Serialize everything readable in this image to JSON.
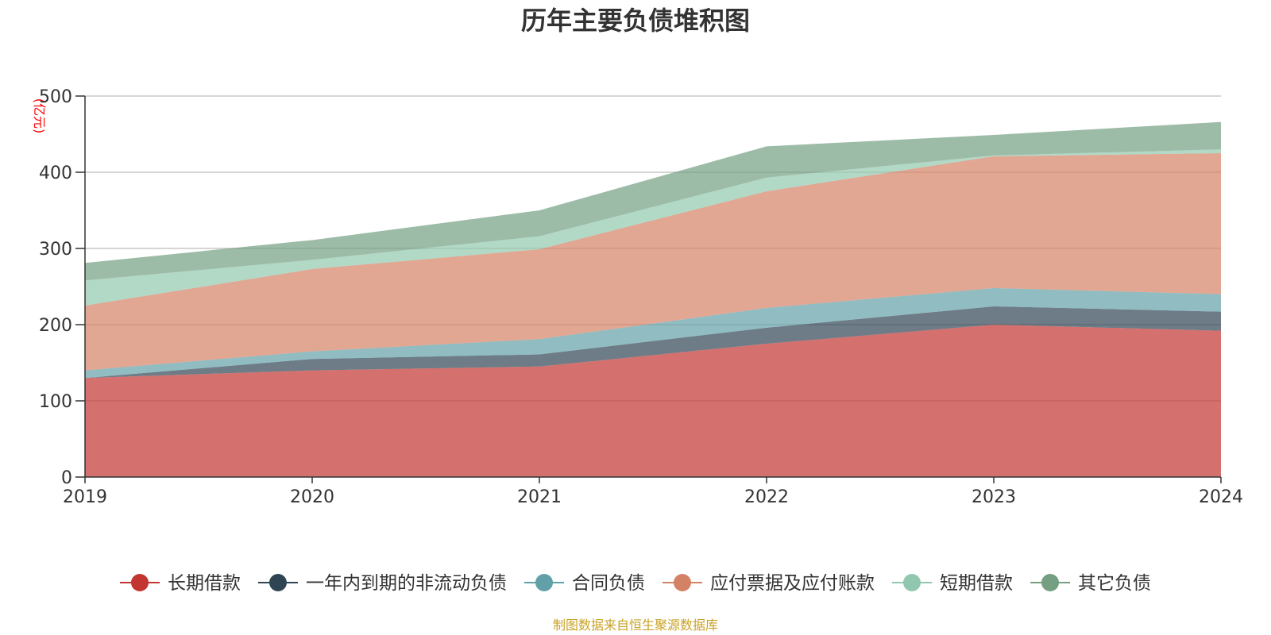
{
  "chart_data": {
    "type": "area",
    "stacked": true,
    "title": "历年主要负债堆积图",
    "unit_label": "(亿元)",
    "source_note": "制图数据来自恒生聚源数据库",
    "categories": [
      "2019",
      "2020",
      "2021",
      "2022",
      "2023",
      "2024"
    ],
    "ylim": [
      0,
      500
    ],
    "yticks": [
      0,
      100,
      200,
      300,
      400,
      500
    ],
    "grid": true,
    "legend_position": "bottom",
    "series": [
      {
        "name": "长期借款",
        "color": "#c23531",
        "values": [
          130,
          140,
          145,
          175,
          200,
          192
        ]
      },
      {
        "name": "一年内到期的非流动负债",
        "color": "#2f4554",
        "values": [
          0,
          15,
          16,
          21,
          24,
          25
        ]
      },
      {
        "name": "合同负债",
        "color": "#61a0a8",
        "values": [
          10,
          10,
          20,
          26,
          24,
          23
        ]
      },
      {
        "name": "应付票据及应付账款",
        "color": "#d48265",
        "values": [
          85,
          108,
          118,
          153,
          173,
          185
        ]
      },
      {
        "name": "短期借款",
        "color": "#91c7ae",
        "values": [
          33,
          12,
          17,
          18,
          1,
          5
        ]
      },
      {
        "name": "其它负债",
        "color": "#749f83",
        "values": [
          23,
          26,
          34,
          41,
          27,
          36
        ]
      }
    ]
  }
}
